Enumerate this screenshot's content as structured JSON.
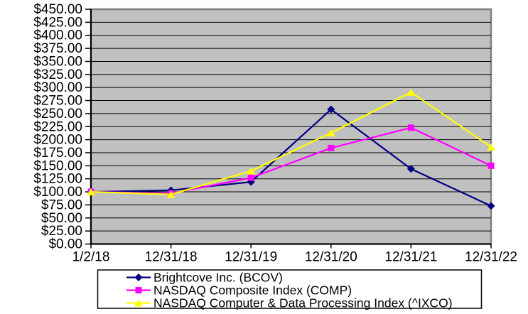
{
  "chart_data": {
    "type": "line",
    "title": "",
    "xlabel": "",
    "ylabel": "",
    "x_categories": [
      "1/2/18",
      "12/31/18",
      "12/31/19",
      "12/31/20",
      "12/31/21",
      "12/31/22"
    ],
    "y_axis": {
      "min": 0,
      "max": 450,
      "step": 25,
      "tick_labels": [
        "$450.00",
        "$425.00",
        "$400.00",
        "$375.00",
        "$350.00",
        "$325.00",
        "$300.00",
        "$275.00",
        "$250.00",
        "$225.00",
        "$200.00",
        "$175.00",
        "$150.00",
        "$125.00",
        "$100.00",
        "$75.00",
        "$50.00",
        "$25.00",
        "$0.00"
      ]
    },
    "series": [
      {
        "id": "bcov",
        "name": "Brightcove Inc. (BCOV)",
        "color": "#000080",
        "marker": "diamond",
        "values": [
          100,
          103,
          119,
          258,
          144,
          73
        ]
      },
      {
        "id": "comp",
        "name": "NASDAQ Composite Index (COMP)",
        "color": "#FF00FF",
        "marker": "square",
        "values": [
          100,
          97,
          127,
          184,
          223,
          150
        ]
      },
      {
        "id": "ixco",
        "name": "NASDAQ Computer & Data Processing Index (^IXCO)",
        "color": "#FFFF00",
        "marker": "triangle",
        "values": [
          100,
          95,
          140,
          213,
          291,
          186
        ]
      }
    ],
    "legend_position": "bottom",
    "grid": true,
    "colors": {
      "plot_background": "#C0C0C0",
      "plot_border": "#808080",
      "gridline": "#000000",
      "axis": "#000000",
      "legend_background": "#FFFFFF",
      "legend_border": "#000000"
    }
  }
}
